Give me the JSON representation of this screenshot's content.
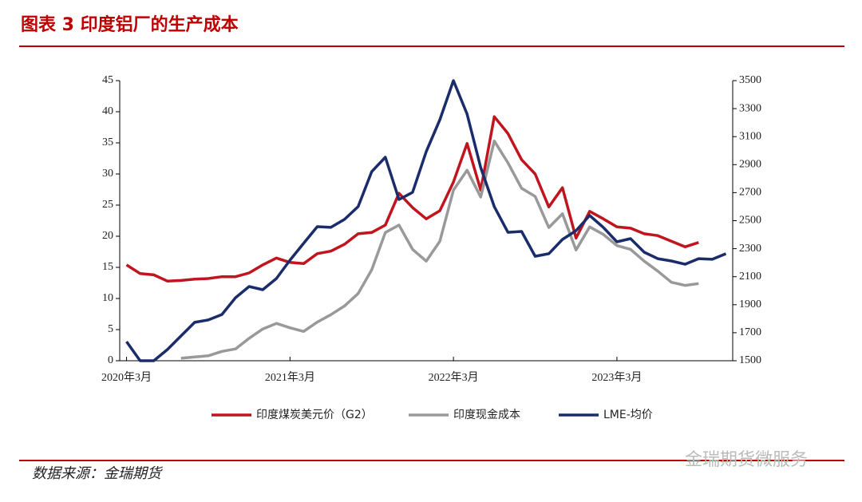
{
  "chart_data": {
    "type": "line",
    "title": "图表 3 印度铝厂的生产成本",
    "source": "数据来源：金瑞期货",
    "watermark": "金瑞期货微服务",
    "categories": [
      "2020年3月",
      null,
      null,
      null,
      null,
      null,
      null,
      null,
      null,
      null,
      null,
      null,
      "2021年3月",
      null,
      null,
      null,
      null,
      null,
      null,
      null,
      null,
      null,
      null,
      null,
      "2022年3月",
      null,
      null,
      null,
      null,
      null,
      null,
      null,
      null,
      null,
      null,
      null,
      "2023年3月",
      null,
      null,
      null,
      null,
      null,
      null,
      null,
      null
    ],
    "ylim": [
      0,
      45
    ],
    "yticks": [
      0,
      5,
      10,
      15,
      20,
      25,
      30,
      35,
      40,
      45
    ],
    "y2lim": [
      1500,
      3500
    ],
    "y2ticks": [
      1500,
      1700,
      1900,
      2100,
      2300,
      2500,
      2700,
      2900,
      3100,
      3300,
      3500
    ],
    "legend": "bottom",
    "series": [
      {
        "name": "印度煤炭美元价（G2）",
        "color": "#c0151f",
        "axis": "y",
        "values": [
          15.4,
          14.0,
          13.8,
          12.8,
          12.9,
          13.1,
          13.2,
          13.5,
          13.5,
          14.1,
          15.4,
          16.5,
          15.8,
          15.6,
          17.2,
          17.6,
          18.7,
          20.4,
          20.6,
          21.8,
          26.9,
          24.6,
          22.8,
          24.1,
          28.7,
          34.9,
          27.4,
          39.2,
          36.5,
          32.3,
          30.0,
          24.7,
          27.8,
          19.7,
          24.0,
          22.8,
          21.5,
          21.3,
          20.4,
          20.1,
          19.2,
          18.3,
          19.0,
          null,
          null
        ]
      },
      {
        "name": "印度现金成本",
        "color": "#999999",
        "axis": "y",
        "values": [
          null,
          null,
          null,
          null,
          0.4,
          0.6,
          0.8,
          1.5,
          1.9,
          3.6,
          5.1,
          6.0,
          5.3,
          4.7,
          6.2,
          7.4,
          8.8,
          10.8,
          14.6,
          20.6,
          21.8,
          17.9,
          16.0,
          19.2,
          27.4,
          30.6,
          26.3,
          35.3,
          31.8,
          27.7,
          26.4,
          21.4,
          23.6,
          17.8,
          21.5,
          20.3,
          18.5,
          17.9,
          16.0,
          14.4,
          12.6,
          12.1,
          12.4,
          null,
          null
        ]
      },
      {
        "name": "LME-均价",
        "color": "#1b2c6b",
        "axis": "y2",
        "values": [
          1637,
          1500,
          1500,
          1580,
          1677,
          1774,
          1791,
          1830,
          1950,
          2030,
          2007,
          2087,
          2218,
          2338,
          2457,
          2452,
          2509,
          2600,
          2850,
          2953,
          2651,
          2702,
          2993,
          3221,
          3500,
          3261,
          2879,
          2600,
          2417,
          2423,
          2246,
          2264,
          2366,
          2429,
          2537,
          2452,
          2349,
          2372,
          2275,
          2229,
          2212,
          2189,
          2229,
          2224,
          2264
        ]
      }
    ]
  }
}
